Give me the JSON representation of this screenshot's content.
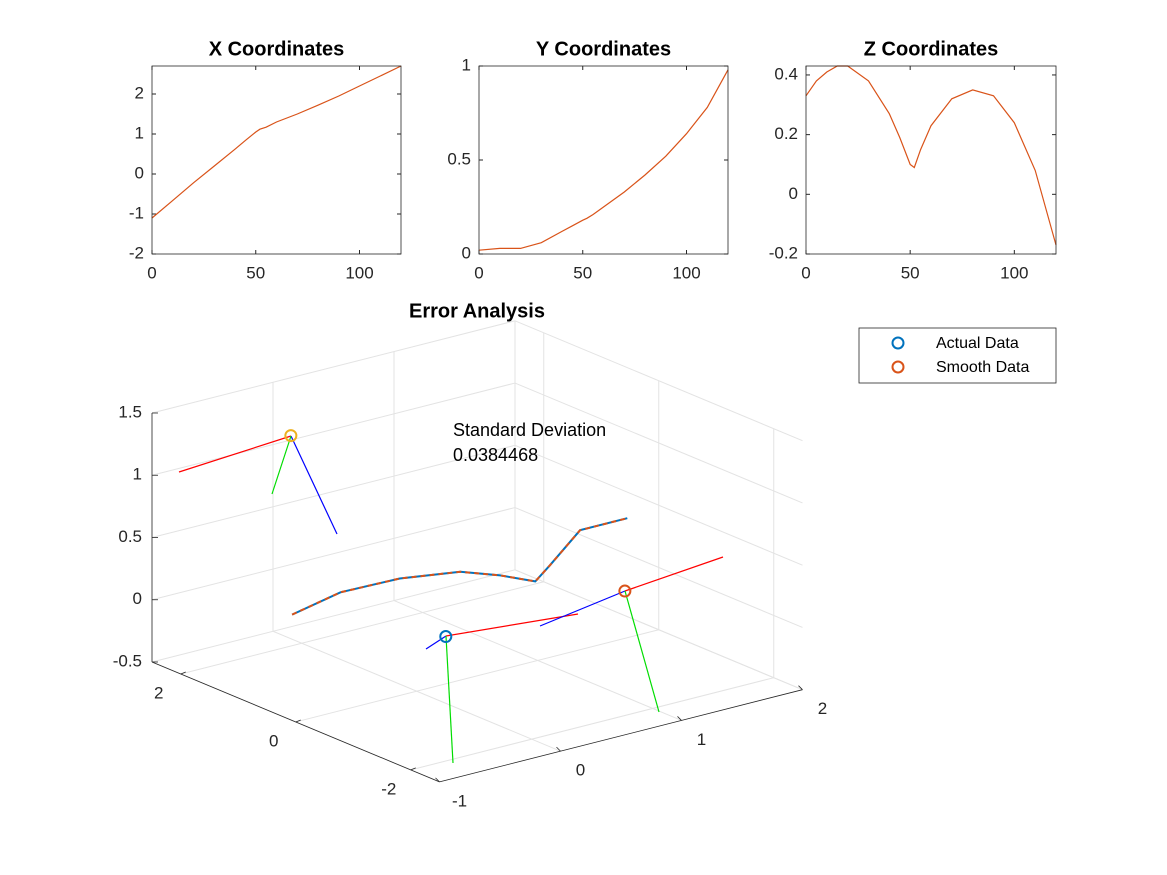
{
  "chart_data": [
    {
      "type": "line",
      "title": "X Coordinates",
      "color": "#d95319",
      "x": [
        0,
        10,
        20,
        30,
        40,
        45,
        50,
        52,
        55,
        60,
        70,
        80,
        90,
        100,
        110,
        120
      ],
      "values": [
        -1.1,
        -0.66,
        -0.22,
        0.2,
        0.62,
        0.84,
        1.05,
        1.12,
        1.17,
        1.3,
        1.5,
        1.72,
        1.95,
        2.2,
        2.45,
        2.7
      ],
      "xlim": [
        0,
        120
      ],
      "xticks": [
        0,
        50,
        100
      ],
      "ylim": [
        -2,
        2.7
      ],
      "yticks": [
        -2,
        -1,
        0,
        1,
        2
      ]
    },
    {
      "type": "line",
      "title": "Y Coordinates",
      "color": "#d95319",
      "x": [
        0,
        10,
        20,
        30,
        40,
        45,
        50,
        52,
        55,
        60,
        70,
        80,
        90,
        100,
        110,
        120
      ],
      "values": [
        0.02,
        0.03,
        0.03,
        0.06,
        0.12,
        0.15,
        0.18,
        0.19,
        0.21,
        0.25,
        0.33,
        0.42,
        0.52,
        0.64,
        0.78,
        0.98
      ],
      "xlim": [
        0,
        120
      ],
      "xticks": [
        0,
        50,
        100
      ],
      "ylim": [
        0,
        1
      ],
      "yticks": [
        0,
        0.5,
        1
      ]
    },
    {
      "type": "line",
      "title": "Z Coordinates",
      "color": "#d95319",
      "x": [
        0,
        5,
        10,
        15,
        20,
        30,
        40,
        45,
        50,
        52,
        55,
        60,
        70,
        80,
        90,
        100,
        110,
        120
      ],
      "values": [
        0.33,
        0.38,
        0.41,
        0.43,
        0.43,
        0.38,
        0.27,
        0.19,
        0.1,
        0.09,
        0.15,
        0.23,
        0.32,
        0.35,
        0.33,
        0.24,
        0.08,
        -0.17
      ],
      "xlim": [
        0,
        120
      ],
      "xticks": [
        0,
        50,
        100
      ],
      "ylim": [
        -0.2,
        0.43
      ],
      "yticks": [
        -0.2,
        0,
        0.2,
        0.4
      ]
    },
    {
      "type": "line3d",
      "title": "Error Analysis",
      "xlim": [
        -1,
        2
      ],
      "xticks": [
        -1,
        0,
        1,
        2
      ],
      "ylim": [
        -2.5,
        2.5
      ],
      "yticks": [
        -2,
        0,
        2
      ],
      "zlim": [
        -0.5,
        1.5
      ],
      "zticks": [
        -0.5,
        0,
        0.5,
        1,
        1.5
      ],
      "grid": true,
      "legend": "northeast-outside",
      "annotation": [
        "Standard Deviation",
        "0.0384468"
      ],
      "series": [
        {
          "name": "Actual Data",
          "color": "#0072bd",
          "x": [
            -1.03,
            -0.63,
            -0.14,
            0.36,
            0.69,
            0.98,
            1.1,
            1.35,
            1.74
          ],
          "y": [
            0,
            0,
            0,
            0,
            0,
            0,
            0,
            0,
            0
          ],
          "z": [
            0.37,
            0.45,
            0.44,
            0.37,
            0.26,
            0.14,
            0.24,
            0.46,
            0.46
          ]
        },
        {
          "name": "Smooth Data",
          "color": "#d95319",
          "x": [
            -1.03,
            -0.63,
            -0.14,
            0.36,
            0.69,
            0.98,
            1.1,
            1.35,
            1.74
          ],
          "y": [
            0,
            0,
            0,
            0,
            0,
            0,
            0,
            0,
            0
          ],
          "z": [
            0.37,
            0.45,
            0.44,
            0.37,
            0.26,
            0.14,
            0.24,
            0.46,
            0.46
          ]
        }
      ],
      "markers": [
        {
          "color": "#0072bd",
          "x": 0.24,
          "y": 0,
          "z": -0.12
        },
        {
          "color": "#d95319",
          "x": 1.72,
          "y": 0,
          "z": -0.12
        },
        {
          "color": "#edb120",
          "x": -0.09,
          "y": 2,
          "z": 1.19
        }
      ]
    }
  ]
}
